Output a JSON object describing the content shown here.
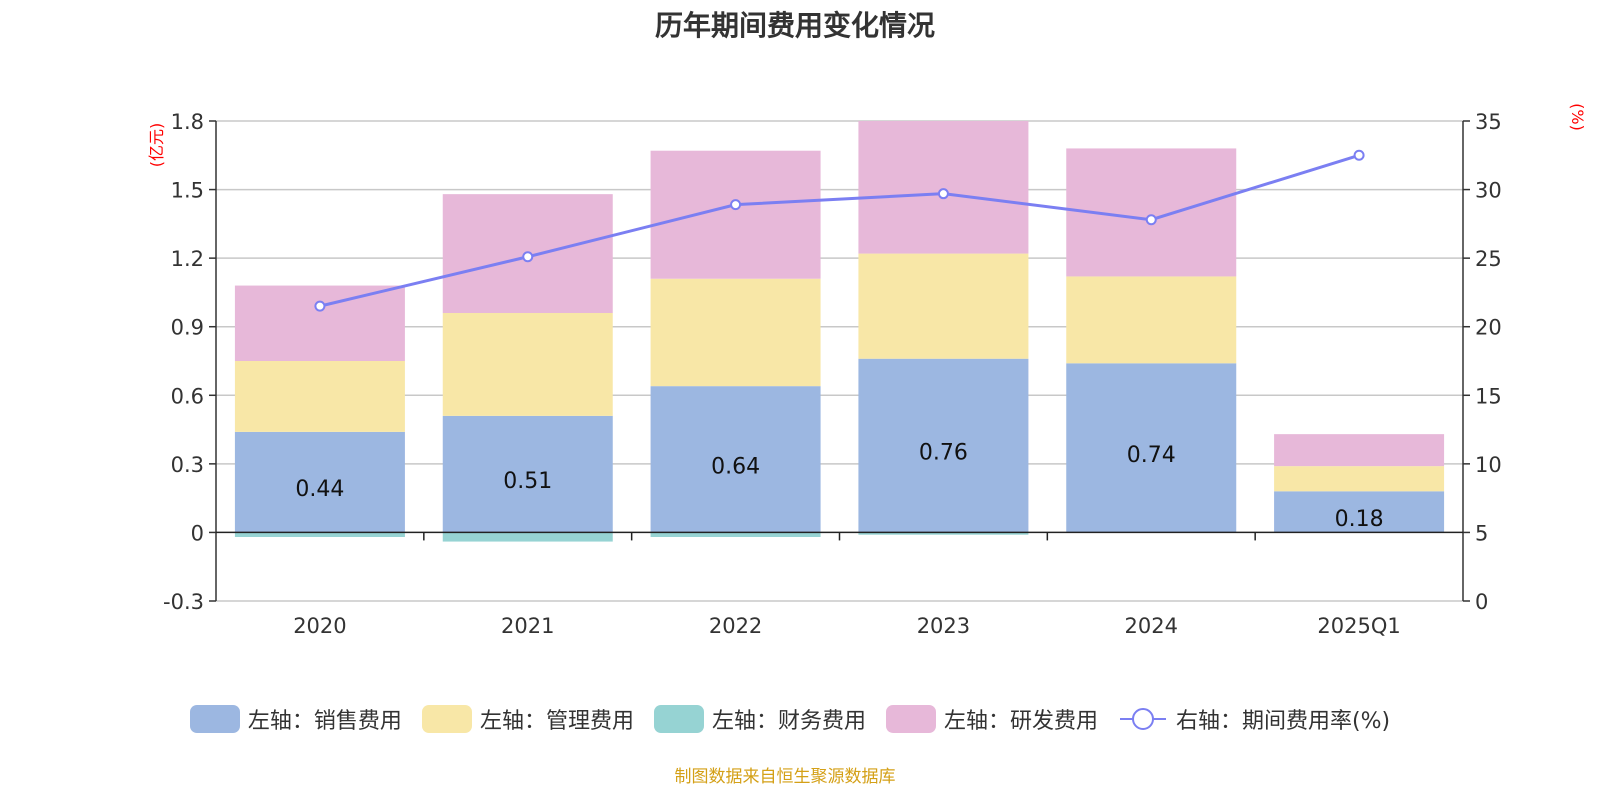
{
  "chart_data": {
    "type": "bar",
    "stacked": true,
    "title": "历年期间费用变化情况",
    "categories": [
      "2020",
      "2021",
      "2022",
      "2023",
      "2024",
      "2025Q1"
    ],
    "series": [
      {
        "name": "左轴：销售费用",
        "axis": "left",
        "color": "#9cb7e1",
        "values": [
          0.44,
          0.51,
          0.64,
          0.76,
          0.74,
          0.18
        ],
        "show_labels": true
      },
      {
        "name": "左轴：管理费用",
        "axis": "left",
        "color": "#f8e7a7",
        "values": [
          0.31,
          0.45,
          0.47,
          0.46,
          0.38,
          0.11
        ],
        "show_labels": false
      },
      {
        "name": "左轴：财务费用",
        "axis": "left",
        "color": "#96d3d3",
        "values": [
          -0.02,
          -0.04,
          -0.02,
          -0.01,
          0.0,
          0.0
        ],
        "show_labels": false
      },
      {
        "name": "左轴：研发费用",
        "axis": "left",
        "color": "#e7b8d9",
        "values": [
          0.33,
          0.52,
          0.56,
          0.58,
          0.56,
          0.14
        ],
        "show_labels": false
      }
    ],
    "line_series": {
      "name": "右轴：期间费用率(%)",
      "axis": "right",
      "color": "#7b7ff2",
      "values": [
        21.5,
        25.1,
        28.9,
        29.7,
        27.8,
        32.5
      ]
    },
    "y_left": {
      "unit": "(亿元)",
      "ylim": [
        -0.3,
        1.8
      ],
      "ticks": [
        -0.3,
        0,
        0.3,
        0.6,
        0.9,
        1.2,
        1.5,
        1.8
      ],
      "tick_labels": [
        "-0.3",
        "0",
        "0.3",
        "0.6",
        "0.9",
        "1.2",
        "1.5",
        "1.8"
      ]
    },
    "y_right": {
      "unit": "(%)",
      "ylim": [
        0,
        35
      ],
      "ticks": [
        0,
        5,
        10,
        15,
        20,
        25,
        30,
        35
      ],
      "tick_labels": [
        "0",
        "5",
        "10",
        "15",
        "20",
        "25",
        "30",
        "35"
      ]
    },
    "grid": true,
    "legend_position": "bottom",
    "unit_color": "#ff0000",
    "source": "制图数据来自恒生聚源数据库"
  }
}
